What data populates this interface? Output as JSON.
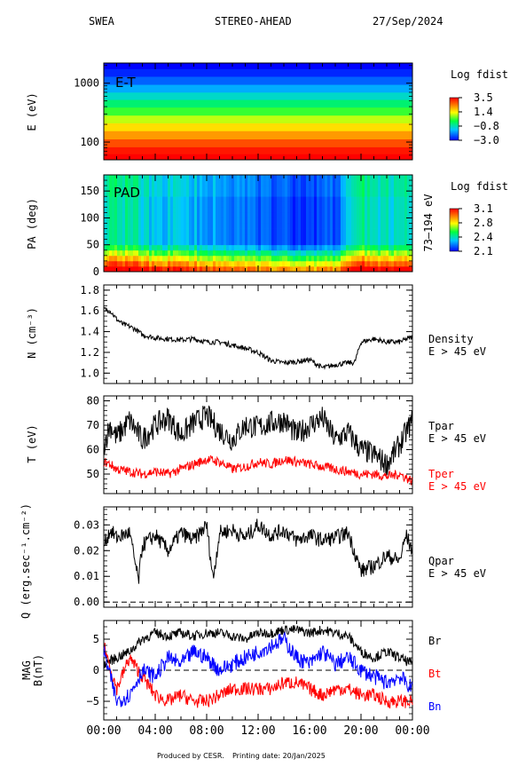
{
  "header": {
    "instrument": "SWEA",
    "spacecraft": "STEREO-AHEAD",
    "date": "27/Sep/2024"
  },
  "footer": {
    "produced_by": "Produced by CESR.",
    "printing_date": "Printing date: 20/Jan/2025"
  },
  "colors": {
    "black": "#000000",
    "red": "#ff0000",
    "blue": "#0000ff"
  },
  "chart_data": [
    {
      "type": "heatmap",
      "panel": "energy-time",
      "in_plot_label": "E-T",
      "ylabel": "E (eV)",
      "y_scale": "log",
      "ylim": [
        50,
        2200
      ],
      "yticks": [
        "1000",
        "100"
      ],
      "ytick_values": [
        1000,
        100
      ],
      "energy_bands_eV": [
        2000,
        1500,
        1100,
        800,
        600,
        450,
        330,
        240,
        180,
        130,
        95,
        70,
        55
      ],
      "band_log_fdist": [
        -3.0,
        -2.7,
        -2.2,
        -1.6,
        -1.0,
        -0.4,
        0.2,
        0.9,
        1.5,
        2.1,
        2.8,
        3.3,
        3.5
      ],
      "colorbar": {
        "title": "Log fdist",
        "ticks": [
          "3.5",
          "1.4",
          "−0.8",
          "−3.0"
        ],
        "range": [
          -3.0,
          3.5
        ]
      }
    },
    {
      "type": "heatmap",
      "panel": "pitch-angle",
      "in_plot_label": "PAD",
      "ylabel": "PA (deg)",
      "right_label": "73–194 eV",
      "ylim": [
        0,
        180
      ],
      "yticks": [
        "150",
        "100",
        "50",
        "0"
      ],
      "ytick_values": [
        150,
        100,
        50,
        0
      ],
      "xlim_hours": [
        0,
        24
      ],
      "time_profile": {
        "hours": [
          0,
          2,
          4,
          6,
          8,
          10,
          12,
          14,
          16,
          18,
          20,
          22,
          24
        ],
        "high_pa_log_fdist": [
          2.45,
          2.45,
          2.35,
          2.35,
          2.3,
          2.25,
          2.2,
          2.2,
          2.15,
          2.2,
          2.45,
          2.4,
          2.4
        ]
      },
      "colorbar": {
        "title": "Log fdist",
        "ticks": [
          "3.1",
          "2.8",
          "2.4",
          "2.1"
        ],
        "range": [
          2.1,
          3.1
        ]
      }
    },
    {
      "type": "line",
      "panel": "density",
      "ylabel": "N (cm⁻³)",
      "ylim": [
        0.9,
        1.85
      ],
      "yticks": [
        "1.8",
        "1.6",
        "1.4",
        "1.2",
        "1.0"
      ],
      "ytick_values": [
        1.8,
        1.6,
        1.4,
        1.2,
        1.0
      ],
      "x": [
        0,
        0.5,
        1,
        1.5,
        2,
        2.5,
        3,
        4,
        5,
        6,
        7,
        8,
        9,
        10,
        11,
        12,
        13,
        14,
        15,
        16,
        17,
        18,
        19,
        19.5,
        20,
        21,
        22,
        23,
        24
      ],
      "series": [
        {
          "name": "Density",
          "sublabel": "E > 45 eV",
          "color": "#000000",
          "values": [
            1.62,
            1.6,
            1.52,
            1.47,
            1.45,
            1.42,
            1.37,
            1.34,
            1.33,
            1.32,
            1.33,
            1.3,
            1.3,
            1.27,
            1.24,
            1.2,
            1.12,
            1.1,
            1.11,
            1.13,
            1.05,
            1.08,
            1.1,
            1.1,
            1.3,
            1.33,
            1.3,
            1.3,
            1.35
          ]
        }
      ]
    },
    {
      "type": "line",
      "panel": "temperature",
      "ylabel": "T (eV)",
      "ylim": [
        42,
        82
      ],
      "yticks": [
        "80",
        "70",
        "60",
        "50"
      ],
      "ytick_values": [
        80,
        70,
        60,
        50
      ],
      "x": [
        0,
        0.5,
        1,
        2,
        3,
        4,
        5,
        6,
        7,
        8,
        9,
        10,
        11,
        12,
        13,
        14,
        15,
        16,
        17,
        18,
        19,
        20,
        21,
        22,
        23,
        24
      ],
      "series": [
        {
          "name": "Tpar",
          "sublabel": "E > 45 eV",
          "color": "#000000",
          "values": [
            62,
            70,
            65,
            72,
            64,
            70,
            73,
            66,
            71,
            74,
            68,
            64,
            70,
            69,
            71,
            72,
            66,
            70,
            73,
            64,
            67,
            60,
            58,
            54,
            62,
            72
          ]
        },
        {
          "name": "Tper",
          "sublabel": "E > 45 eV",
          "color": "#ff0000",
          "values": [
            55,
            54,
            52,
            51,
            50,
            51,
            50,
            52,
            54,
            56,
            55,
            52,
            53,
            55,
            54,
            56,
            55,
            54,
            53,
            52,
            51,
            50,
            50,
            49,
            50,
            47
          ]
        }
      ]
    },
    {
      "type": "line",
      "panel": "heat-flux",
      "ylabel": "Q (erg.sec⁻¹.cm⁻²)",
      "ylim": [
        -0.002,
        0.037
      ],
      "yticks": [
        "0.03",
        "0.02",
        "0.01",
        "0.00"
      ],
      "ytick_values": [
        0.03,
        0.02,
        0.01,
        0.0
      ],
      "zero_line": true,
      "x": [
        0,
        0.5,
        1,
        2,
        2.7,
        3,
        4,
        5,
        6,
        7,
        8,
        8.5,
        9,
        10,
        11,
        12,
        13,
        14,
        15,
        16,
        17,
        18,
        19,
        20,
        21,
        22,
        23,
        23.5,
        24
      ],
      "series": [
        {
          "name": "Qpar",
          "sublabel": "E > 45 eV",
          "color": "#000000",
          "values": [
            0.022,
            0.028,
            0.025,
            0.027,
            0.008,
            0.022,
            0.026,
            0.02,
            0.027,
            0.024,
            0.03,
            0.009,
            0.027,
            0.028,
            0.025,
            0.03,
            0.026,
            0.028,
            0.024,
            0.026,
            0.024,
            0.025,
            0.027,
            0.012,
            0.014,
            0.018,
            0.016,
            0.026,
            0.02
          ]
        }
      ]
    },
    {
      "type": "line",
      "panel": "magnetic-field",
      "ylabel": "MAG B(nT)",
      "ylim": [
        -8,
        8
      ],
      "yticks": [
        "5",
        "0",
        "−5"
      ],
      "ytick_values": [
        5,
        0,
        -5
      ],
      "zero_line": true,
      "xticks": [
        "00:00",
        "04:00",
        "08:00",
        "12:00",
        "16:00",
        "20:00",
        "00:00"
      ],
      "xtick_hours": [
        0,
        4,
        8,
        12,
        16,
        20,
        24
      ],
      "x": [
        0,
        1,
        2,
        3,
        4,
        5,
        6,
        7,
        8,
        9,
        10,
        11,
        12,
        13,
        14,
        15,
        16,
        17,
        18,
        19,
        20,
        21,
        22,
        23,
        24
      ],
      "series": [
        {
          "name": "Br",
          "color": "#000000",
          "values": [
            1,
            2,
            3,
            5,
            6,
            5.5,
            6,
            5.5,
            6,
            6,
            5.5,
            5,
            6,
            6,
            6.5,
            6.5,
            6,
            6.5,
            6,
            5.5,
            3,
            2,
            3,
            2,
            1
          ]
        },
        {
          "name": "Bt",
          "color": "#ff0000",
          "values": [
            4,
            -3,
            2,
            -1,
            -4,
            -5,
            -4,
            -5,
            -5,
            -4,
            -3,
            -3,
            -3,
            -3,
            -2,
            -2,
            -3,
            -4,
            -3,
            -3,
            -4,
            -4,
            -5,
            -5,
            -5
          ]
        },
        {
          "name": "Bn",
          "color": "#0000ff",
          "values": [
            3,
            -5,
            -4,
            0,
            -1,
            2,
            1,
            3,
            2,
            0,
            1,
            2,
            3,
            4,
            5,
            2,
            1,
            3,
            1,
            2,
            0,
            -1,
            -2,
            -1,
            -3
          ]
        }
      ]
    }
  ]
}
